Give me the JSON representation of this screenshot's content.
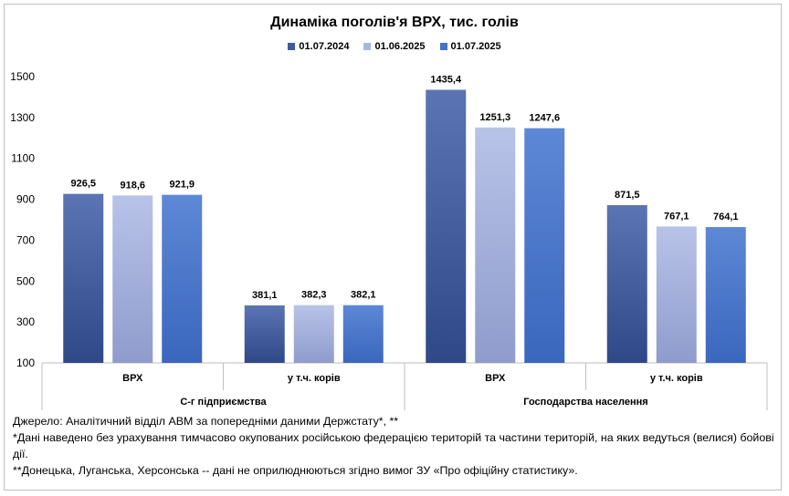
{
  "chart_data": {
    "type": "bar",
    "title": "Динаміка поголів'я ВРХ, тис. голів",
    "groups": [
      {
        "label": "С-г підприємства",
        "categories": [
          "ВРХ",
          "у т.ч. корів"
        ]
      },
      {
        "label": "Господарства  населення",
        "categories": [
          "ВРХ",
          "у т.ч.  корів"
        ]
      }
    ],
    "categories": [
      "ВРХ",
      "у т.ч. корів",
      "ВРХ",
      "у т.ч.  корів"
    ],
    "series": [
      {
        "name": "01.07.2024",
        "color": "#3f5b9a",
        "values": [
          926.5,
          381.1,
          1435.4,
          871.5
        ],
        "labels": [
          "926,5",
          "381,1",
          "1435,4",
          "871,5"
        ]
      },
      {
        "name": "01.06.2025",
        "color": "#a9b6df",
        "values": [
          918.6,
          382.3,
          1251.3,
          767.1
        ],
        "labels": [
          "918,6",
          "382,3",
          "1251,3",
          "767,1"
        ]
      },
      {
        "name": "01.07.2025",
        "color": "#4472c4",
        "values": [
          921.9,
          382.1,
          1247.6,
          764.1
        ],
        "labels": [
          "921,9",
          "382,1",
          "1247,6",
          "764,1"
        ]
      }
    ],
    "yticks": [
      "100",
      "300",
      "500",
      "700",
      "900",
      "1100",
      "1300",
      "1500"
    ],
    "ylim": [
      100,
      1500
    ],
    "grid": false,
    "legend": "top-center"
  },
  "notes": [
    "Джерело: Аналітичний відділ АВМ за попередніми даними Держстату*, **",
    "*Дані наведено без урахування тимчасово окупованих російською федерацією територій та частини територій, на яких ведуться (велися) бойові дії.",
    "**Донецька, Луганська, Херсонська -- дані не оприлюднюються згідно вимог ЗУ «Про офіційну статистику»."
  ]
}
